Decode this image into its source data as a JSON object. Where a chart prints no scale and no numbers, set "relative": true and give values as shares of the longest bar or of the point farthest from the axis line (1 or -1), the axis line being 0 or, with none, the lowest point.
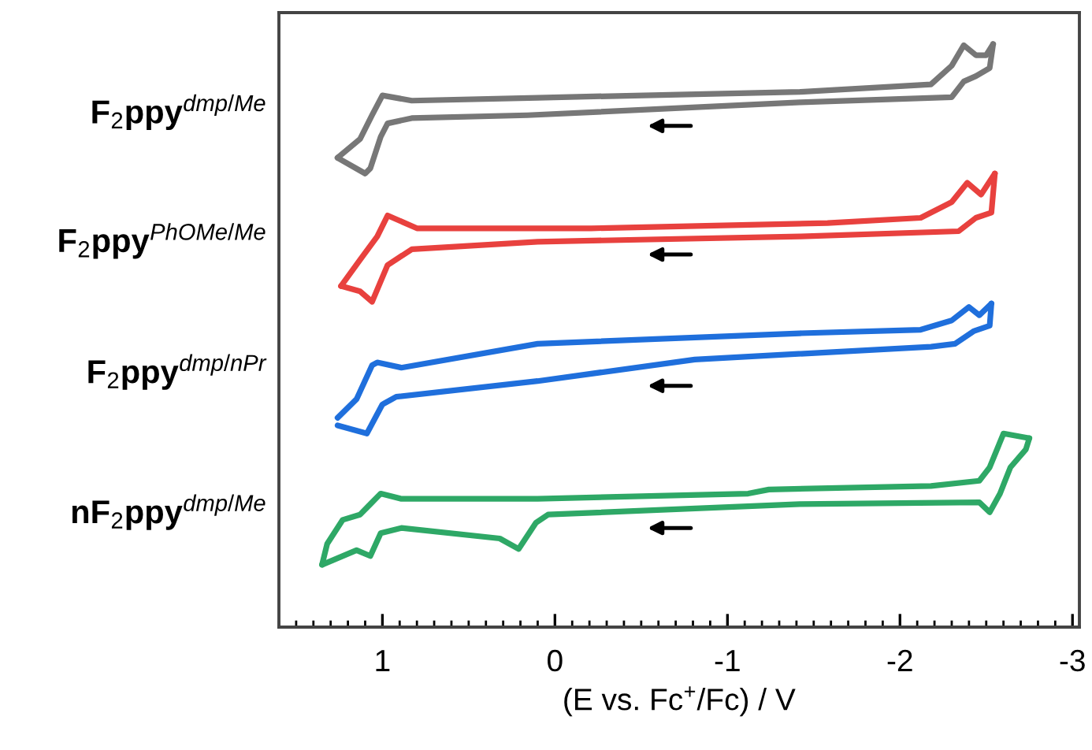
{
  "chart_data": {
    "type": "line",
    "relative": true,
    "xlabel": "(E vs. Fc$^{+}$/Fc) / V",
    "xlim": [
      1.6,
      -3.04
    ],
    "xticks": [
      1,
      0,
      -1,
      -2,
      -3
    ],
    "grid": false,
    "legend": false,
    "marker": "none",
    "line_style": "solid",
    "series": [
      {
        "name": "F$_{2}$ppy$^{dmp/Me}$",
        "color": "#777777",
        "x": [
          1.26,
          1.13,
          1.06,
          1.0,
          0.83,
          0.1,
          -1.42,
          -2.18,
          -2.3,
          -2.37,
          -2.44,
          -2.5,
          -2.54
        ],
        "values": [
          0.805,
          0.837,
          0.878,
          0.912,
          0.903,
          0.908,
          0.918,
          0.931,
          0.963,
          0.998,
          0.981,
          0.981,
          1.0
        ]
      },
      {
        "color": "#777777",
        "x": [
          -2.54,
          -2.52,
          -2.44,
          -2.37,
          -2.3,
          -1.42,
          0.16,
          0.83,
          0.97,
          1.01,
          1.07,
          1.1,
          1.26
        ],
        "values": [
          1.0,
          0.959,
          0.945,
          0.936,
          0.909,
          0.9,
          0.878,
          0.873,
          0.864,
          0.841,
          0.787,
          0.778,
          0.805
        ]
      },
      {
        "name": "F$_{2}$ppy$^{PhOMe/Me}$",
        "color": "#e8413e",
        "x": [
          1.24,
          1.13,
          1.03,
          0.97,
          0.8,
          -0.21,
          -1.58,
          -2.12,
          -2.3,
          -2.39,
          -2.47,
          -2.55
        ],
        "values": [
          0.585,
          0.63,
          0.67,
          0.706,
          0.684,
          0.684,
          0.693,
          0.702,
          0.729,
          0.762,
          0.742,
          0.778
        ]
      },
      {
        "color": "#e8413e",
        "x": [
          -2.55,
          -2.53,
          -2.44,
          -2.34,
          -1.42,
          0.1,
          0.83,
          0.97,
          1.06,
          1.13,
          1.24
        ],
        "values": [
          0.778,
          0.711,
          0.702,
          0.679,
          0.67,
          0.661,
          0.648,
          0.621,
          0.558,
          0.576,
          0.585
        ]
      },
      {
        "name": "F$_{2}$ppy$^{dmp/nPr}$",
        "color": "#1f6fdc",
        "x": [
          1.26,
          1.15,
          1.06,
          1.03,
          0.89,
          0.1,
          -1.42,
          -2.12,
          -2.3,
          -2.4,
          -2.46,
          -2.53
        ],
        "values": [
          0.359,
          0.391,
          0.449,
          0.454,
          0.445,
          0.486,
          0.504,
          0.51,
          0.526,
          0.549,
          0.535,
          0.555
        ]
      },
      {
        "color": "#1f6fdc",
        "x": [
          -2.53,
          -2.52,
          -2.43,
          -2.32,
          -2.18,
          -0.81,
          0.1,
          0.92,
          1.0,
          1.09,
          1.26
        ],
        "values": [
          0.555,
          0.517,
          0.508,
          0.486,
          0.481,
          0.459,
          0.422,
          0.395,
          0.382,
          0.332,
          0.346
        ]
      },
      {
        "name": "nF$_{2}$ppy$^{dmp/Me}$",
        "color": "#2ea866",
        "x": [
          1.35,
          1.32,
          1.23,
          1.13,
          1.07,
          1.01,
          0.89,
          0.1,
          -1.12,
          -1.24,
          -2.18,
          -2.46,
          -2.52,
          -2.6,
          -2.75
        ],
        "values": [
          0.107,
          0.143,
          0.184,
          0.193,
          0.211,
          0.229,
          0.22,
          0.22,
          0.229,
          0.236,
          0.242,
          0.251,
          0.274,
          0.332,
          0.324
        ]
      },
      {
        "color": "#2ea866",
        "x": [
          -2.75,
          -2.73,
          -2.64,
          -2.58,
          -2.52,
          -2.46,
          -1.42,
          0.04,
          0.11,
          0.21,
          0.32,
          0.89,
          1.01,
          1.07,
          1.15,
          1.35
        ],
        "values": [
          0.324,
          0.305,
          0.274,
          0.229,
          0.197,
          0.214,
          0.211,
          0.193,
          0.179,
          0.134,
          0.152,
          0.17,
          0.161,
          0.122,
          0.132,
          0.107
        ]
      }
    ]
  }
}
